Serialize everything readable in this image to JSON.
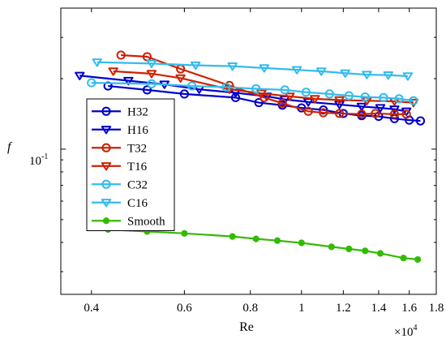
{
  "chart_data": {
    "type": "line",
    "xlabel": "Re",
    "ylabel": "f",
    "x_multiplier": "×10",
    "x_multiplier_exp": "4",
    "x_scale": "log",
    "y_scale": "log",
    "xlim": [
      3500,
      18000
    ],
    "ylim": [
      0.024,
      0.4
    ],
    "x_ticks": [
      4000,
      6000,
      8000,
      10000,
      12000,
      14000,
      16000,
      18000
    ],
    "x_tick_labels": [
      "0.4",
      "0.6",
      "0.8",
      "1",
      "1.2",
      "1.4",
      "1.6",
      "1.8"
    ],
    "y_tick_label": "10",
    "y_tick_label_exp": "-1",
    "y_tick_value": 0.1,
    "grid": false,
    "legend": {
      "placement": "left",
      "entries": [
        "H32",
        "H16",
        "T32",
        "T16",
        "C32",
        "C16",
        "Smooth"
      ]
    },
    "series": [
      {
        "name": "H32",
        "color": "#0000cc",
        "marker": "circle",
        "x": [
          4300,
          5100,
          6000,
          7500,
          8300,
          9200,
          10000,
          11000,
          12000,
          13000,
          14000,
          15000,
          16000,
          16800
        ],
        "y": [
          0.186,
          0.179,
          0.172,
          0.166,
          0.158,
          0.154,
          0.15,
          0.147,
          0.142,
          0.139,
          0.138,
          0.135,
          0.133,
          0.132
        ]
      },
      {
        "name": "H16",
        "color": "#0000cc",
        "marker": "triangle-down",
        "x": [
          3800,
          4700,
          5500,
          6400,
          7500,
          8600,
          9300,
          10300,
          11800,
          13000,
          14100,
          15000,
          15800
        ],
        "y": [
          0.206,
          0.196,
          0.189,
          0.18,
          0.174,
          0.168,
          0.163,
          0.159,
          0.155,
          0.152,
          0.15,
          0.148,
          0.145
        ]
      },
      {
        "name": "T32",
        "color": "#cc2200",
        "marker": "circle",
        "x": [
          4550,
          5100,
          5900,
          7300,
          8500,
          9200,
          10300,
          11000,
          11800,
          13000,
          13800,
          15000,
          15800
        ],
        "y": [
          0.252,
          0.248,
          0.22,
          0.187,
          0.166,
          0.157,
          0.145,
          0.143,
          0.142,
          0.141,
          0.142,
          0.141,
          0.141
        ]
      },
      {
        "name": "T16",
        "color": "#cc2200",
        "marker": "triangle-down",
        "x": [
          4400,
          5200,
          5900,
          7300,
          8400,
          9500,
          10600,
          11800,
          13300,
          15000,
          16300
        ],
        "y": [
          0.215,
          0.21,
          0.201,
          0.18,
          0.173,
          0.168,
          0.164,
          0.162,
          0.161,
          0.16,
          0.158
        ]
      },
      {
        "name": "C32",
        "color": "#33bbee",
        "marker": "circle",
        "x": [
          4000,
          5200,
          6200,
          7200,
          8200,
          9300,
          10200,
          11300,
          12300,
          13200,
          14300,
          15300,
          16300
        ],
        "y": [
          0.192,
          0.19,
          0.186,
          0.184,
          0.181,
          0.179,
          0.175,
          0.172,
          0.169,
          0.167,
          0.166,
          0.164,
          0.161
        ]
      },
      {
        "name": "C16",
        "color": "#33bbee",
        "marker": "triangle-down",
        "x": [
          4100,
          5200,
          6300,
          7400,
          8500,
          9800,
          10900,
          12100,
          13300,
          14600,
          15900
        ],
        "y": [
          0.235,
          0.232,
          0.228,
          0.226,
          0.222,
          0.218,
          0.215,
          0.211,
          0.208,
          0.207,
          0.205
        ]
      },
      {
        "name": "Smooth",
        "color": "#33bb00",
        "marker": "filled-circle",
        "x": [
          4300,
          5100,
          6000,
          7400,
          8200,
          9000,
          10000,
          11400,
          12300,
          13200,
          14100,
          15600,
          16600
        ],
        "y": [
          0.0454,
          0.0445,
          0.0437,
          0.0424,
          0.0414,
          0.0407,
          0.0398,
          0.0383,
          0.0375,
          0.0368,
          0.0359,
          0.0343,
          0.0338
        ]
      }
    ]
  }
}
